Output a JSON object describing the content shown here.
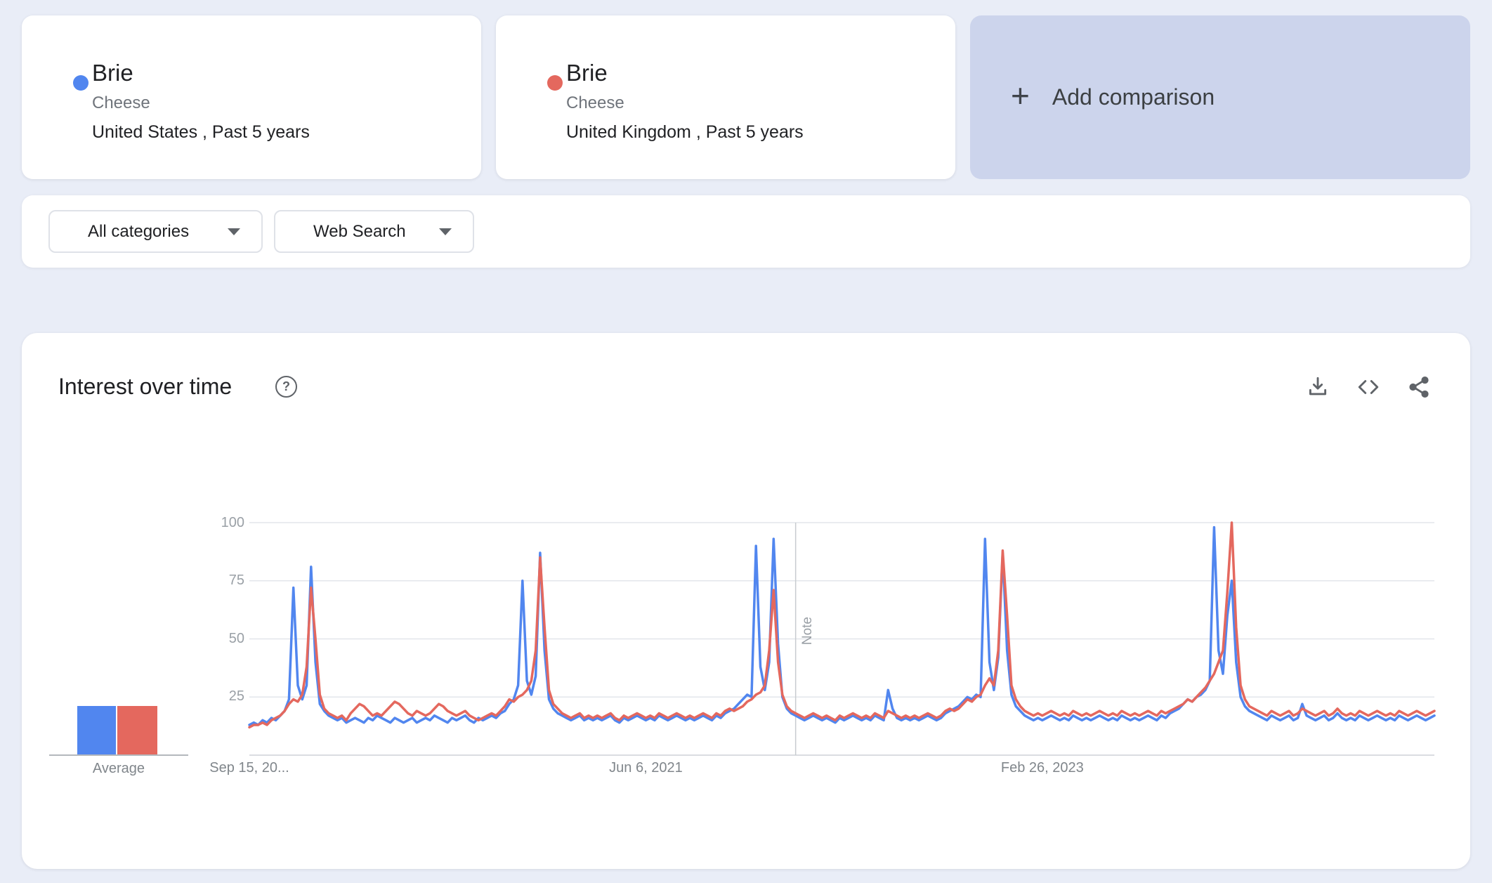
{
  "comparison": {
    "terms": [
      {
        "label": "Brie",
        "type": "Cheese",
        "scope": "United States , Past 5 years",
        "color": "#5186ef"
      },
      {
        "label": "Brie",
        "type": "Cheese",
        "scope": "United Kingdom , Past 5 years",
        "color": "#e4685e"
      }
    ],
    "add_label": "Add comparison",
    "plus_glyph": "+"
  },
  "filters": {
    "category": "All categories",
    "search_type": "Web Search"
  },
  "panel": {
    "title": "Interest over time",
    "help_glyph": "?"
  },
  "colors": {
    "page_background": "#e9edf7",
    "add_card_background": "#ccd4ec",
    "series_blue": "#5186ef",
    "series_red": "#e4685e"
  },
  "chart_data": {
    "type": "line",
    "title": "Interest over time",
    "ylim": [
      0,
      100
    ],
    "ytick_labels": [
      "100",
      "75",
      "50",
      "25"
    ],
    "xtick_labels": [
      "Sep 15, 20...",
      "Jun 6, 2021",
      "Feb 26, 2023"
    ],
    "xtick_weeks": [
      0,
      90,
      180
    ],
    "note_label": "Note",
    "note_week": 124,
    "average_label": "Average",
    "averages": [
      21,
      21
    ],
    "grid": "horizontal",
    "series": [
      {
        "name": "Brie — United States",
        "color": "#5186ef",
        "values": [
          13,
          14,
          13,
          15,
          14,
          16,
          15,
          17,
          19,
          24,
          72,
          30,
          24,
          30,
          81,
          40,
          22,
          19,
          17,
          16,
          15,
          16,
          14,
          15,
          16,
          15,
          14,
          16,
          15,
          17,
          16,
          15,
          14,
          16,
          15,
          14,
          15,
          16,
          14,
          15,
          16,
          15,
          17,
          16,
          15,
          14,
          16,
          15,
          16,
          17,
          15,
          14,
          16,
          15,
          16,
          17,
          16,
          18,
          19,
          22,
          24,
          30,
          75,
          32,
          26,
          34,
          87,
          45,
          24,
          20,
          18,
          17,
          16,
          15,
          16,
          17,
          15,
          16,
          15,
          16,
          15,
          16,
          17,
          15,
          14,
          16,
          15,
          16,
          17,
          16,
          15,
          16,
          15,
          17,
          16,
          15,
          16,
          17,
          16,
          15,
          16,
          15,
          16,
          17,
          16,
          15,
          17,
          16,
          18,
          19,
          20,
          22,
          24,
          26,
          25,
          90,
          38,
          28,
          40,
          93,
          48,
          25,
          20,
          18,
          17,
          16,
          15,
          16,
          17,
          16,
          15,
          16,
          15,
          14,
          16,
          15,
          16,
          17,
          16,
          15,
          16,
          15,
          17,
          16,
          15,
          28,
          20,
          16,
          15,
          16,
          15,
          16,
          15,
          16,
          17,
          16,
          15,
          16,
          18,
          19,
          20,
          21,
          23,
          25,
          24,
          26,
          25,
          93,
          40,
          28,
          42,
          87,
          45,
          26,
          21,
          19,
          17,
          16,
          15,
          16,
          15,
          16,
          17,
          16,
          15,
          16,
          15,
          17,
          16,
          15,
          16,
          15,
          16,
          17,
          16,
          15,
          16,
          15,
          17,
          16,
          15,
          16,
          15,
          16,
          17,
          16,
          15,
          17,
          16,
          18,
          19,
          20,
          22,
          24,
          23,
          25,
          26,
          28,
          32,
          98,
          45,
          35,
          60,
          75,
          40,
          25,
          21,
          19,
          18,
          17,
          16,
          15,
          17,
          16,
          15,
          16,
          17,
          15,
          16,
          22,
          17,
          16,
          15,
          16,
          17,
          15,
          16,
          18,
          16,
          15,
          16,
          15,
          17,
          16,
          15,
          16,
          17,
          16,
          15,
          16,
          15,
          17,
          16,
          15,
          16,
          17,
          16,
          15,
          16,
          17
        ]
      },
      {
        "name": "Brie — United Kingdom",
        "color": "#e4685e",
        "values": [
          12,
          13,
          13,
          14,
          13,
          15,
          16,
          17,
          19,
          22,
          24,
          23,
          26,
          38,
          72,
          50,
          26,
          20,
          18,
          17,
          16,
          17,
          15,
          18,
          20,
          22,
          21,
          19,
          17,
          18,
          17,
          19,
          21,
          23,
          22,
          20,
          18,
          17,
          19,
          18,
          17,
          18,
          20,
          22,
          21,
          19,
          18,
          17,
          18,
          19,
          17,
          16,
          15,
          16,
          17,
          18,
          17,
          19,
          21,
          24,
          23,
          25,
          26,
          28,
          32,
          45,
          85,
          55,
          28,
          22,
          20,
          18,
          17,
          16,
          17,
          18,
          16,
          17,
          16,
          17,
          16,
          17,
          18,
          16,
          15,
          17,
          16,
          17,
          18,
          17,
          16,
          17,
          16,
          18,
          17,
          16,
          17,
          18,
          17,
          16,
          17,
          16,
          17,
          18,
          17,
          16,
          18,
          17,
          19,
          20,
          19,
          20,
          21,
          23,
          24,
          26,
          27,
          30,
          45,
          71,
          40,
          26,
          21,
          19,
          18,
          17,
          16,
          17,
          18,
          17,
          16,
          17,
          16,
          15,
          17,
          16,
          17,
          18,
          17,
          16,
          17,
          16,
          18,
          17,
          16,
          19,
          18,
          17,
          16,
          17,
          16,
          17,
          16,
          17,
          18,
          17,
          16,
          17,
          19,
          20,
          19,
          20,
          22,
          24,
          23,
          25,
          26,
          30,
          33,
          30,
          45,
          88,
          60,
          30,
          24,
          21,
          19,
          18,
          17,
          18,
          17,
          18,
          19,
          18,
          17,
          18,
          17,
          19,
          18,
          17,
          18,
          17,
          18,
          19,
          18,
          17,
          18,
          17,
          19,
          18,
          17,
          18,
          17,
          18,
          19,
          18,
          17,
          19,
          18,
          19,
          20,
          21,
          22,
          24,
          23,
          25,
          27,
          29,
          32,
          35,
          40,
          45,
          70,
          100,
          55,
          30,
          24,
          21,
          20,
          19,
          18,
          17,
          19,
          18,
          17,
          18,
          19,
          17,
          18,
          20,
          19,
          18,
          17,
          18,
          19,
          17,
          18,
          20,
          18,
          17,
          18,
          17,
          19,
          18,
          17,
          18,
          19,
          18,
          17,
          18,
          17,
          19,
          18,
          17,
          18,
          19,
          18,
          17,
          18,
          19
        ]
      }
    ]
  }
}
